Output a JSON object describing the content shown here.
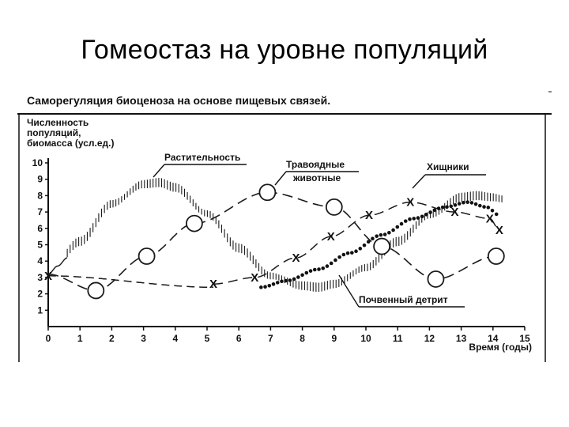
{
  "slide": {
    "title": "Гомеостаз на уровне популяций"
  },
  "chart_data": {
    "type": "line",
    "title": "Саморегуляция биоценоза на основе пищевых связей.",
    "ylabel_lines": [
      "Численность",
      "популяций,",
      "биомасса (усл.ед.)"
    ],
    "xlabel": "Время (годы)",
    "xlim": [
      0,
      15
    ],
    "ylim": [
      0,
      10
    ],
    "x_ticks": [
      "0",
      "1",
      "2",
      "3",
      "4",
      "5",
      "6",
      "7",
      "8",
      "9",
      "10",
      "11",
      "12",
      "13",
      "14",
      "15"
    ],
    "y_ticks": [
      "1",
      "2",
      "3",
      "4",
      "5",
      "6",
      "7",
      "8",
      "9",
      "10"
    ],
    "grid": false,
    "series": [
      {
        "name": "Растительность",
        "style": "hatched-band",
        "x": [
          0,
          1,
          2,
          3,
          3.5,
          4,
          5,
          6,
          7,
          8,
          8.5,
          9,
          10,
          11,
          12,
          13,
          13.5,
          14,
          14.3
        ],
        "y": [
          3.2,
          5.2,
          7.5,
          8.7,
          8.8,
          8.5,
          6.9,
          4.8,
          3.1,
          2.5,
          2.4,
          2.6,
          3.6,
          5.2,
          6.8,
          7.9,
          8.0,
          7.9,
          7.8
        ]
      },
      {
        "name": "Травоядные животные",
        "style": "dash-circle",
        "x": [
          0,
          1.5,
          3.1,
          4.6,
          6.9,
          9,
          10.5,
          12.2,
          14.1
        ],
        "y": [
          3.2,
          2.2,
          4.3,
          6.3,
          8.2,
          7.3,
          4.9,
          2.9,
          4.3
        ]
      },
      {
        "name": "Хищники",
        "style": "dash-x",
        "x": [
          0,
          5.2,
          6.5,
          7.8,
          8.9,
          10.1,
          11.4,
          12.8,
          13.9,
          14.2
        ],
        "y": [
          3.1,
          2.6,
          3.0,
          4.2,
          5.5,
          6.8,
          7.6,
          7.0,
          6.6,
          5.9
        ]
      },
      {
        "name": "Почвенный детрит",
        "style": "dots",
        "x": [
          6.7,
          7.5,
          8.5,
          9.5,
          10.5,
          11.5,
          12.5,
          13.2,
          13.8,
          14.2
        ],
        "y": [
          2.4,
          2.8,
          3.5,
          4.5,
          5.6,
          6.6,
          7.3,
          7.6,
          7.3,
          6.8
        ]
      }
    ],
    "legend_placement": "labels-on-curves"
  }
}
